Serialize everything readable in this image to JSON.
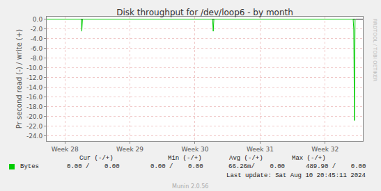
{
  "chart_data": {
    "type": "line",
    "title": "Disk throughput for /dev/loop6 - by month",
    "y_label": "Pr second read (-) / write (+)",
    "x": [
      27.72,
      28.25,
      28.26,
      28.27,
      30.27,
      30.28,
      30.29,
      32.43,
      32.44,
      32.45,
      32.46,
      32.47
    ],
    "series": [
      {
        "name": "Bytes",
        "color": "#00cc00",
        "values": [
          0,
          0,
          -2.5,
          0,
          0,
          -2.5,
          0,
          0,
          -2.0,
          -20.8,
          0,
          0
        ],
        "stats": [
          "0.00 /    0.00",
          "0.00 /    0.00",
          "66.26m/    0.00",
          "489.90 /    0.00"
        ]
      }
    ],
    "stat_headers": [
      "Cur (-/+)",
      "Min (-/+)",
      "Avg (-/+)",
      "Max (-/+)"
    ],
    "xlim": [
      27.72,
      32.58
    ],
    "xticks": [
      {
        "value": 28,
        "label": "Week 28"
      },
      {
        "value": 29,
        "label": "Week 29"
      },
      {
        "value": 30,
        "label": "Week 30"
      },
      {
        "value": 31,
        "label": "Week 31"
      },
      {
        "value": 32,
        "label": "Week 32"
      }
    ],
    "ylim": [
      -25,
      0.5
    ],
    "yticks": [
      {
        "value": 0,
        "label": "0.0"
      },
      {
        "value": -2,
        "label": "-2.0"
      },
      {
        "value": -4,
        "label": "-4.0"
      },
      {
        "value": -6,
        "label": "-6.0"
      },
      {
        "value": -8,
        "label": "-8.0"
      },
      {
        "value": -10,
        "label": "-10.0"
      },
      {
        "value": -12,
        "label": "-12.0"
      },
      {
        "value": -14,
        "label": "-14.0"
      },
      {
        "value": -16,
        "label": "-16.0"
      },
      {
        "value": -18,
        "label": "-18.0"
      },
      {
        "value": -20,
        "label": "-20.0"
      },
      {
        "value": -22,
        "label": "-22.0"
      },
      {
        "value": -24,
        "label": "-24.0"
      }
    ],
    "grid": true,
    "footer": "Last update: Sat Aug 10 20:45:11 2024",
    "credit": "Munin 2.0.56",
    "watermark": "RRDTOOL / TOBI OETIKER"
  }
}
